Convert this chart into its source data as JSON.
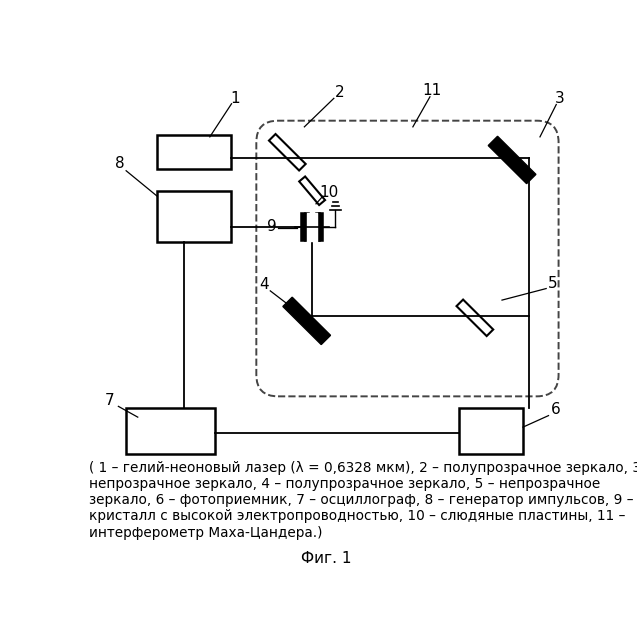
{
  "bg_color": "#ffffff",
  "caption_line1": "( 1 – гелий-неоновый лазер (λ = 0,6328 мкм), 2 – полупрозрачное зеркало, 3 –",
  "caption_line2": "непрозрачное зеркало, 4 – полупрозрачное зеркало, 5 – непрозрачное",
  "caption_line3": "зеркало, 6 – фотоприемник, 7 – осциллограф, 8 – генератор импульсов, 9 –",
  "caption_line4": "кристалл с высокой электропроводностью, 10 – слюдяные пластины, 11 –",
  "caption_line5": "интерферометр Маха-Цандера.)",
  "fig_label": "Фиг. 1"
}
